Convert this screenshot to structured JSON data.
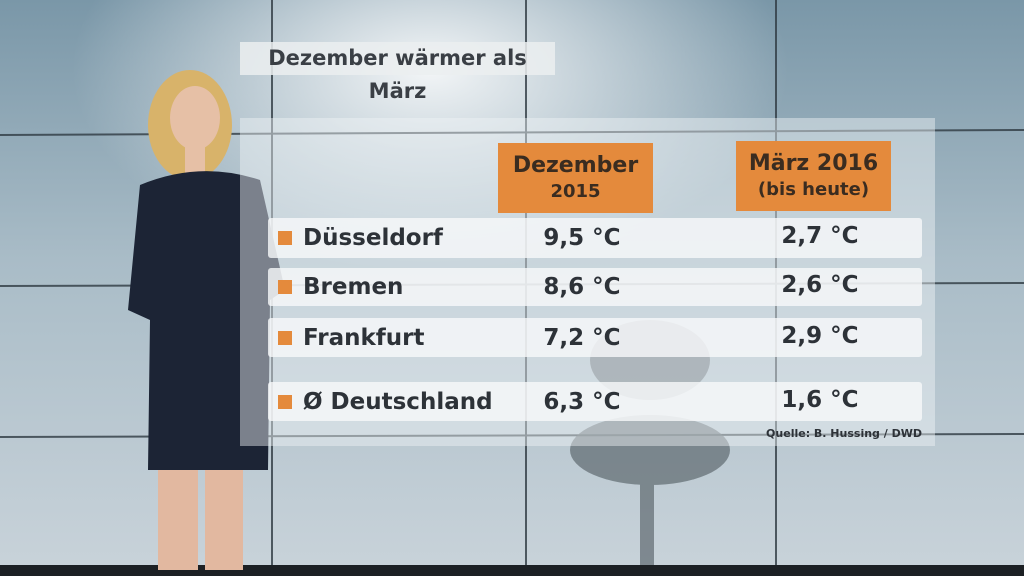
{
  "title": "Dezember wärmer als März",
  "table": {
    "headers": [
      [
        "Dezember",
        "2015"
      ],
      [
        "März 2016",
        "(bis heute)"
      ]
    ],
    "rows": [
      [
        "Düsseldorf",
        "9,5 °C",
        "2,7 °C"
      ],
      [
        "Bremen",
        "8,6 °C",
        "2,6 °C"
      ],
      [
        "Frankfurt",
        "7,2 °C",
        "2,9 °C"
      ],
      [
        "Ø Deutschland",
        "6,3 °C",
        "1,6 °C"
      ]
    ]
  },
  "source": "Quelle: B. Hussing / DWD"
}
